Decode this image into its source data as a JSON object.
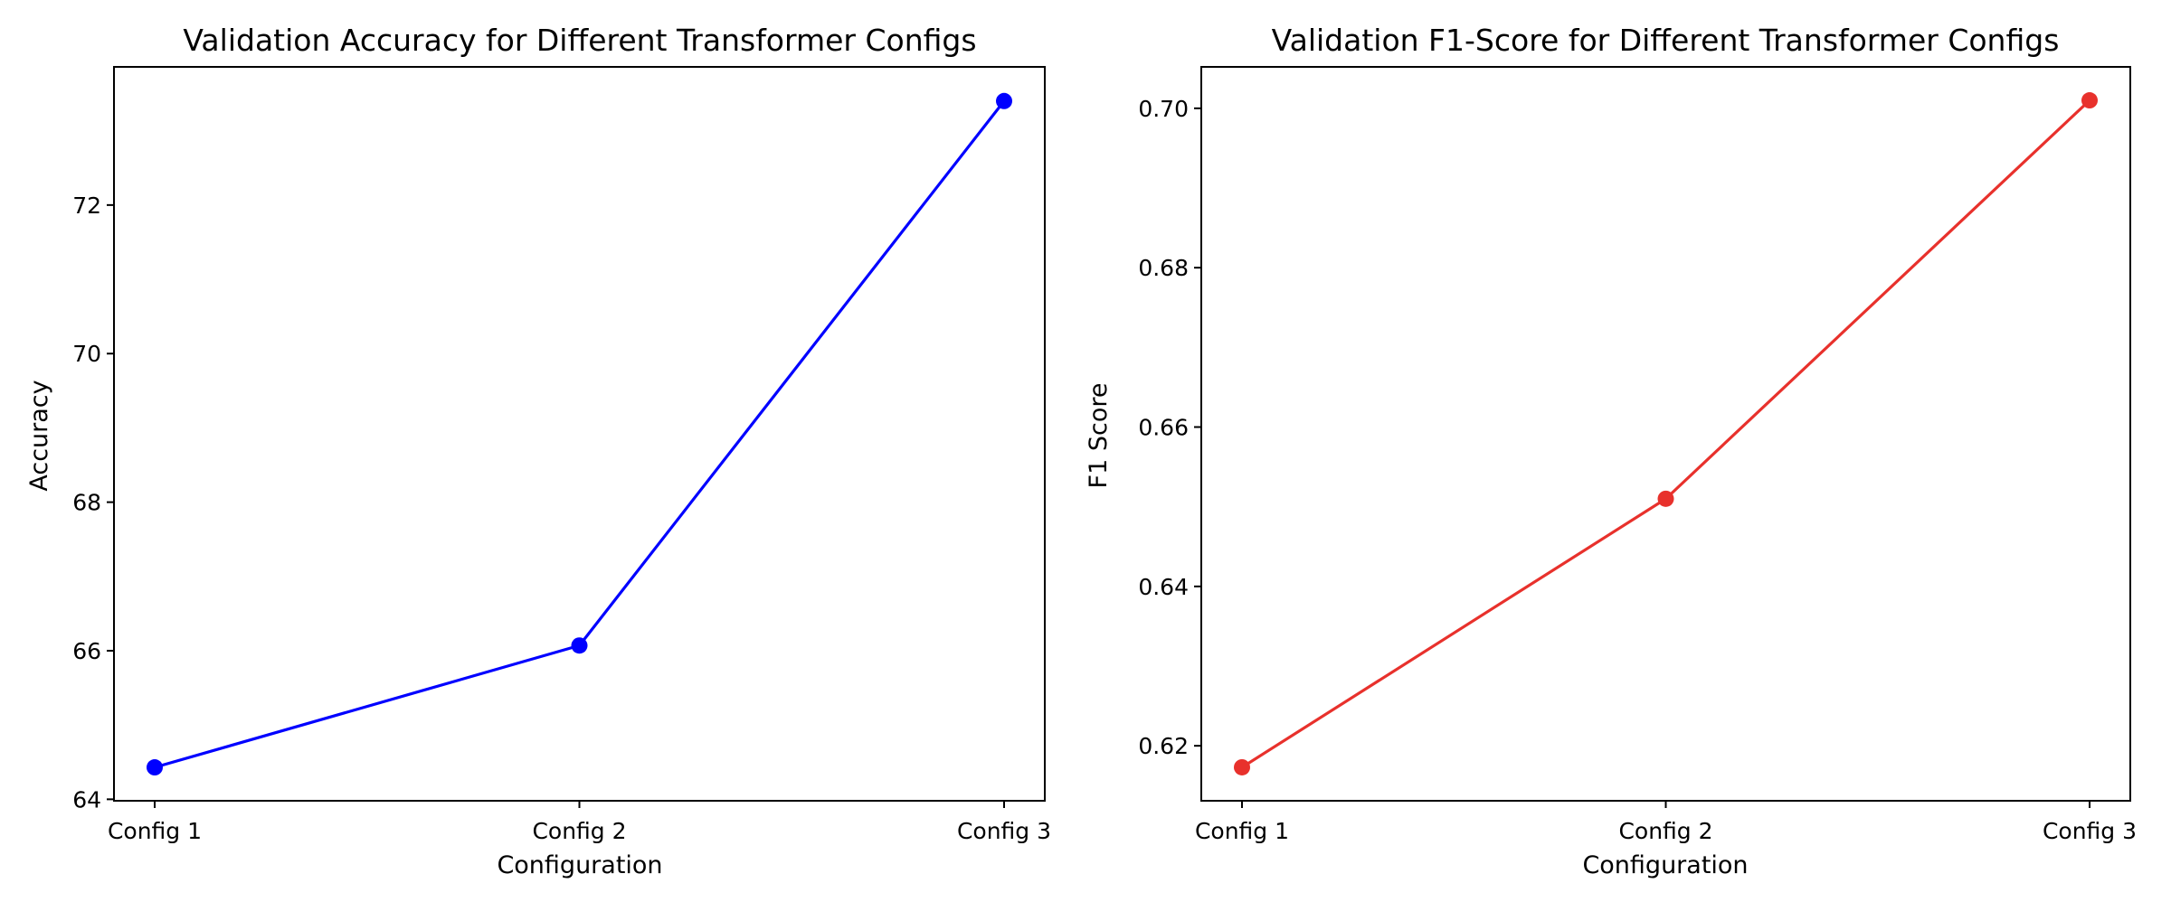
{
  "chart_data": [
    {
      "type": "line",
      "title": "Validation Accuracy for Different Transformer Configs",
      "xlabel": "Configuration",
      "ylabel": "Accuracy",
      "categories": [
        "Config 1",
        "Config 2",
        "Config 3"
      ],
      "series": [
        {
          "values": [
            64.43,
            66.07,
            73.4
          ],
          "color": "#0000ff"
        }
      ],
      "ylim": [
        63.98,
        73.86
      ],
      "yticks": [
        64,
        66,
        68,
        70,
        72
      ],
      "ytick_labels": [
        "64",
        "66",
        "68",
        "70",
        "72"
      ],
      "grid": false,
      "legend": "none"
    },
    {
      "type": "line",
      "title": "Validation F1-Score for Different Transformer Configs",
      "xlabel": "Configuration",
      "ylabel": "F1 Score",
      "categories": [
        "Config 1",
        "Config 2",
        "Config 3"
      ],
      "series": [
        {
          "values": [
            0.6173,
            0.651,
            0.701
          ],
          "color": "#e8312c"
        }
      ],
      "ylim": [
        0.6131,
        0.7052
      ],
      "yticks": [
        0.62,
        0.64,
        0.66,
        0.68,
        0.7
      ],
      "ytick_labels": [
        "0.62",
        "0.64",
        "0.66",
        "0.68",
        "0.70"
      ],
      "grid": false,
      "legend": "none"
    }
  ]
}
